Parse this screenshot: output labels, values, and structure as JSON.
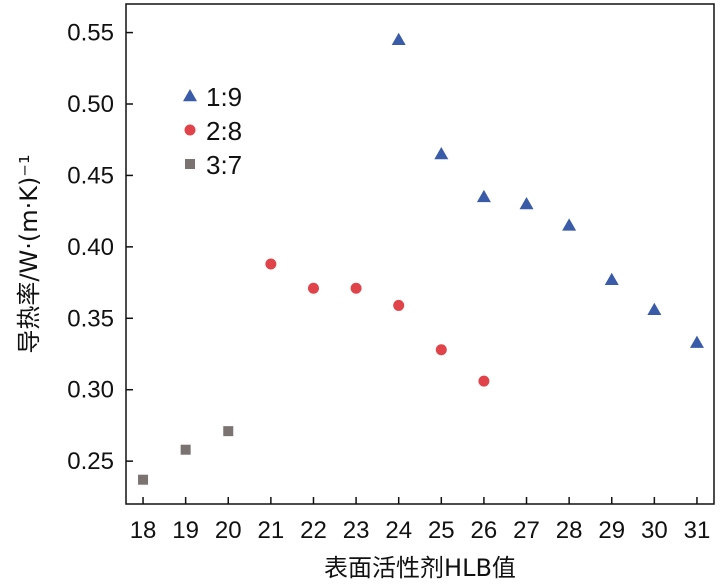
{
  "chart_data": {
    "type": "scatter",
    "title": "",
    "xlabel": "表面活性剂HLB值",
    "ylabel": "导热率/W·(m·K)⁻¹",
    "xlim": [
      17.6,
      31.4
    ],
    "ylim": [
      0.22,
      0.57
    ],
    "x_ticks": [
      18,
      19,
      20,
      21,
      22,
      23,
      24,
      25,
      26,
      27,
      28,
      29,
      30,
      31
    ],
    "x_tick_labels": [
      "18",
      "19",
      "20",
      "21",
      "22",
      "23",
      "24",
      "25",
      "26",
      "27",
      "28",
      "29",
      "30",
      "31"
    ],
    "y_ticks": [
      0.25,
      0.3,
      0.35,
      0.4,
      0.45,
      0.5,
      0.55
    ],
    "y_tick_labels": [
      "0.25",
      "0.30",
      "0.35",
      "0.40",
      "0.45",
      "0.50",
      "0.55"
    ],
    "legend_position": "top-left",
    "grid": false,
    "series": [
      {
        "name": "1:9",
        "marker": "triangle",
        "color": "#3a5ba8",
        "x": [
          24,
          25,
          26,
          27,
          28,
          29,
          30,
          31
        ],
        "y": [
          0.545,
          0.465,
          0.435,
          0.43,
          0.415,
          0.377,
          0.356,
          0.333
        ]
      },
      {
        "name": "2:8",
        "marker": "circle",
        "color": "#e0434a",
        "x": [
          21,
          22,
          23,
          24,
          25,
          26
        ],
        "y": [
          0.388,
          0.371,
          0.371,
          0.359,
          0.328,
          0.306
        ]
      },
      {
        "name": "3:7",
        "marker": "square",
        "color": "#7a7371",
        "x": [
          18,
          19,
          20
        ],
        "y": [
          0.237,
          0.258,
          0.271
        ]
      }
    ]
  }
}
